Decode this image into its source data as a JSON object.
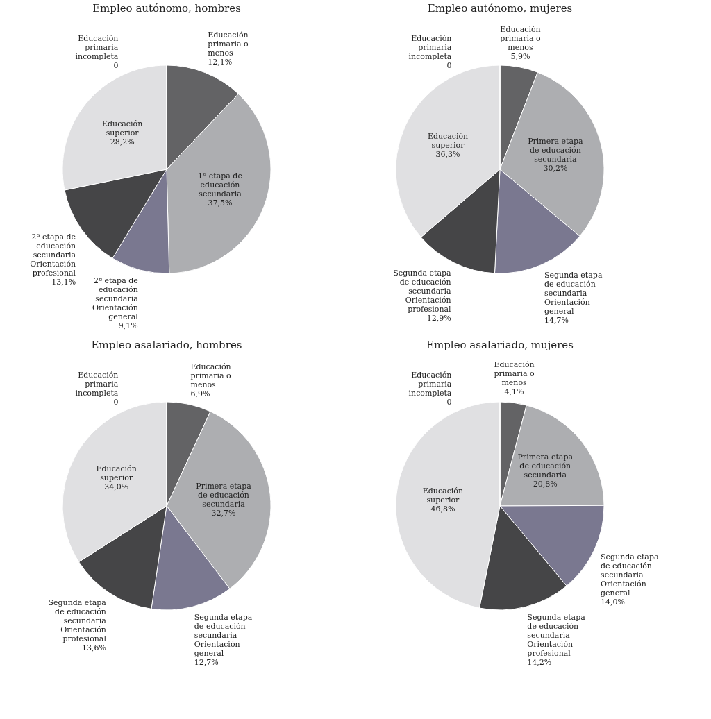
{
  "chart_data": [
    {
      "type": "pie",
      "title": "Empleo autónomo, hombres",
      "categories": [
        "Educación primaria o menos",
        "1ª etapa de educación secundaria",
        "2ª etapa de educación secundaria Orientación general",
        "2ª etapa de educación secundaria Orientación profesional",
        "Educación superior",
        "Educación primaria incompleta"
      ],
      "values": [
        12.1,
        37.5,
        9.1,
        13.1,
        28.2,
        0
      ],
      "value_labels": [
        "12,1%",
        "37,5%",
        "9,1%",
        "13,1%",
        "28,2%",
        "0"
      ],
      "colors": [
        "#636365",
        "#adaeb1",
        "#7a7890",
        "#454547",
        "#e0e0e2",
        "#cfcfd1"
      ]
    },
    {
      "type": "pie",
      "title": "Empleo autónomo, mujeres",
      "categories": [
        "Educación primaria o menos",
        "Primera etapa de educación secundaria",
        "Segunda etapa de educación secundaria Orientación general",
        "Segunda etapa de educación secundaria Orientación profesional",
        "Educación superior",
        "Educación primaria incompleta"
      ],
      "values": [
        5.9,
        30.2,
        14.7,
        12.9,
        36.3,
        0
      ],
      "value_labels": [
        "5,9%",
        "30,2%",
        "14,7%",
        "12,9%",
        "36,3%",
        "0"
      ],
      "colors": [
        "#636365",
        "#adaeb1",
        "#7a7890",
        "#454547",
        "#e0e0e2",
        "#cfcfd1"
      ]
    },
    {
      "type": "pie",
      "title": "Empleo asalariado, hombres",
      "categories": [
        "Educación primaria o menos",
        "Primera etapa de educación secundaria",
        "Segunda etapa de educación secundaria Orientación general",
        "Segunda etapa de educación secundaria Orientación profesional",
        "Educación superior",
        "Educación primaria incompleta"
      ],
      "values": [
        6.9,
        32.7,
        12.7,
        13.6,
        34.0,
        0
      ],
      "value_labels": [
        "6,9%",
        "32,7%",
        "12,7%",
        "13,6%",
        "34,0%",
        "0"
      ],
      "colors": [
        "#636365",
        "#adaeb1",
        "#7a7890",
        "#454547",
        "#e0e0e2",
        "#cfcfd1"
      ]
    },
    {
      "type": "pie",
      "title": "Empleo asalariado, mujeres",
      "categories": [
        "Educación primaria o menos",
        "Primera etapa de educación secundaria",
        "Segunda etapa de educación secundaria Orientación general",
        "Segunda etapa de educación secundaria Orientación profesional",
        "Educación superior",
        "Educación primaria incompleta"
      ],
      "values": [
        4.1,
        20.8,
        14.0,
        14.2,
        46.8,
        0
      ],
      "value_labels": [
        "4,1%",
        "20,8%",
        "14,0%",
        "14,2%",
        "46,8%",
        "0"
      ],
      "colors": [
        "#636365",
        "#adaeb1",
        "#7a7890",
        "#454547",
        "#e0e0e2",
        "#cfcfd1"
      ]
    }
  ]
}
